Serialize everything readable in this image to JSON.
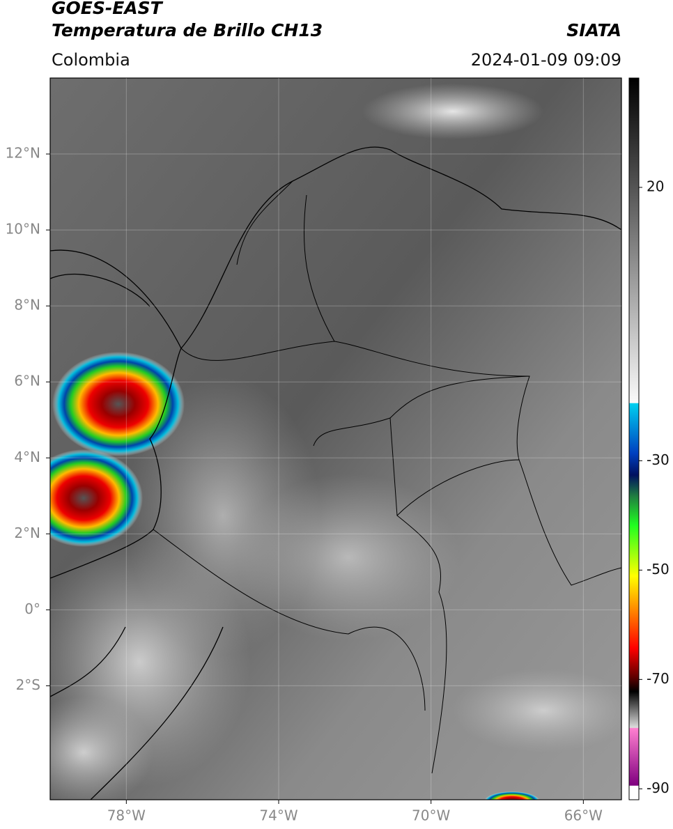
{
  "header": {
    "title": "GOES-EAST",
    "subtitle": "Temperatura de Brillo CH13",
    "region": "Colombia",
    "source": "SIATA",
    "datetime": "2024-01-09 09:09"
  },
  "map": {
    "lonlim": [
      -80,
      -65
    ],
    "latlim": [
      -5,
      14
    ],
    "lat_ticks": [
      {
        "value": 12,
        "label": "12°N"
      },
      {
        "value": 10,
        "label": "10°N"
      },
      {
        "value": 8,
        "label": "8°N"
      },
      {
        "value": 6,
        "label": "6°N"
      },
      {
        "value": 4,
        "label": "4°N"
      },
      {
        "value": 2,
        "label": "2°N"
      },
      {
        "value": 0,
        "label": "0°"
      },
      {
        "value": -2,
        "label": "2°S"
      }
    ],
    "lon_ticks": [
      {
        "value": -78,
        "label": "78°W"
      },
      {
        "value": -74,
        "label": "74°W"
      },
      {
        "value": -70,
        "label": "70°W"
      },
      {
        "value": -66,
        "label": "66°W"
      }
    ]
  },
  "colorbar": {
    "clim": [
      -92,
      40
    ],
    "ticks": [
      20,
      -30,
      -50,
      -70,
      -90
    ]
  }
}
